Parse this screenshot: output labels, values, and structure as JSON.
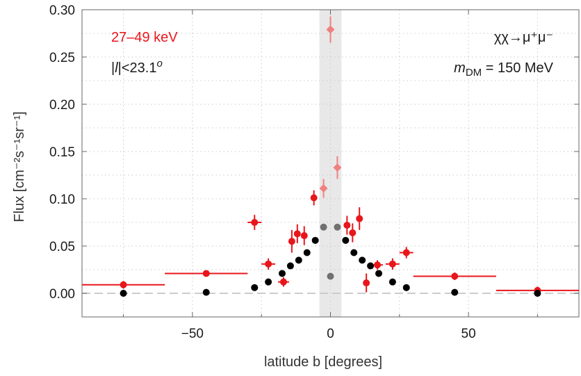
{
  "chart_data": {
    "type": "scatter",
    "xlabel": "latitude b [degrees]",
    "ylabel": "Flux [cm⁻²s⁻¹sr⁻¹]",
    "xlim": [
      -90,
      90
    ],
    "ylim": [
      -0.025,
      0.3
    ],
    "x_ticks": [
      -50,
      0,
      50
    ],
    "y_ticks": [
      0.0,
      0.05,
      0.1,
      0.15,
      0.2,
      0.25,
      0.3
    ],
    "y_tick_labels": [
      "0.00",
      "0.05",
      "0.10",
      "0.15",
      "0.20",
      "0.25",
      "0.30"
    ],
    "x_tick_labels": [
      "−50",
      "0",
      "50"
    ],
    "grid": true,
    "shaded_band": {
      "x_range": [
        -4,
        4
      ],
      "color": "#e8e8e8"
    },
    "zero_line": {
      "y": 0,
      "style": "dashed",
      "color": "#cccccc"
    },
    "annotations": {
      "energy": "27–49 keV",
      "lcut": "|l|<23.1°",
      "channel": "χχ→μ⁺μ⁻",
      "mass": "m_DM = 150 MeV"
    },
    "series": [
      {
        "color": "#e8161b",
        "marker": "circle-errorbar",
        "points": [
          {
            "x": -75,
            "y": 0.009,
            "yerr": 0.004,
            "xerr": 15
          },
          {
            "x": -45,
            "y": 0.021,
            "yerr": 0.003,
            "xerr": 15
          },
          {
            "x": -27.5,
            "y": 0.075,
            "yerr": 0.008,
            "xerr": 2.5
          },
          {
            "x": -22.5,
            "y": 0.031,
            "yerr": 0.006,
            "xerr": 2.5
          },
          {
            "x": -17,
            "y": 0.012,
            "yerr": 0.005,
            "xerr": 2
          },
          {
            "x": -14,
            "y": 0.055,
            "yerr": 0.012,
            "xerr": 1
          },
          {
            "x": -12,
            "y": 0.063,
            "yerr": 0.01,
            "xerr": 1
          },
          {
            "x": -9.5,
            "y": 0.061,
            "yerr": 0.01,
            "xerr": 1
          },
          {
            "x": -6,
            "y": 0.101,
            "yerr": 0.008,
            "xerr": 1
          },
          {
            "x": 6,
            "y": 0.072,
            "yerr": 0.01,
            "xerr": 1
          },
          {
            "x": 8,
            "y": 0.064,
            "yerr": 0.01,
            "xerr": 1
          },
          {
            "x": 10.5,
            "y": 0.079,
            "yerr": 0.012,
            "xerr": 1
          },
          {
            "x": 13,
            "y": 0.011,
            "yerr": 0.01,
            "xerr": 1
          },
          {
            "x": 17,
            "y": 0.03,
            "yerr": 0.005,
            "xerr": 2
          },
          {
            "x": 22.5,
            "y": 0.031,
            "yerr": 0.006,
            "xerr": 2.5
          },
          {
            "x": 27.5,
            "y": 0.043,
            "yerr": 0.006,
            "xerr": 2.5
          },
          {
            "x": 45,
            "y": 0.018,
            "yerr": 0.004,
            "xerr": 15
          },
          {
            "x": 75,
            "y": 0.003,
            "yerr": 0.004,
            "xerr": 15
          }
        ]
      },
      {
        "color": "#f08080",
        "marker": "diamond-errorbar",
        "points": [
          {
            "x": -2.5,
            "y": 0.111,
            "yerr": 0.01,
            "xerr": 1
          },
          {
            "x": 0,
            "y": 0.279,
            "yerr": 0.014,
            "xerr": 1
          },
          {
            "x": 2.5,
            "y": 0.133,
            "yerr": 0.012,
            "xerr": 1
          }
        ]
      },
      {
        "color": "#000000",
        "marker": "dot",
        "points": [
          {
            "x": -75,
            "y": 0.0
          },
          {
            "x": -45,
            "y": 0.001
          },
          {
            "x": -27.5,
            "y": 0.006
          },
          {
            "x": -22.5,
            "y": 0.012
          },
          {
            "x": -17.5,
            "y": 0.021
          },
          {
            "x": -14.5,
            "y": 0.029
          },
          {
            "x": -11.5,
            "y": 0.035
          },
          {
            "x": -8.5,
            "y": 0.043
          },
          {
            "x": -5.5,
            "y": 0.056
          },
          {
            "x": 5.5,
            "y": 0.056
          },
          {
            "x": 8.5,
            "y": 0.043
          },
          {
            "x": 11.5,
            "y": 0.035
          },
          {
            "x": 14.5,
            "y": 0.029
          },
          {
            "x": 17.5,
            "y": 0.021
          },
          {
            "x": 22.5,
            "y": 0.012
          },
          {
            "x": 27.5,
            "y": 0.006
          },
          {
            "x": 45,
            "y": 0.001
          },
          {
            "x": 75,
            "y": 0.0
          }
        ]
      },
      {
        "color": "#707070",
        "marker": "dot",
        "points": [
          {
            "x": -2.5,
            "y": 0.07
          },
          {
            "x": 0,
            "y": 0.018
          },
          {
            "x": 2.5,
            "y": 0.07
          }
        ]
      }
    ]
  }
}
